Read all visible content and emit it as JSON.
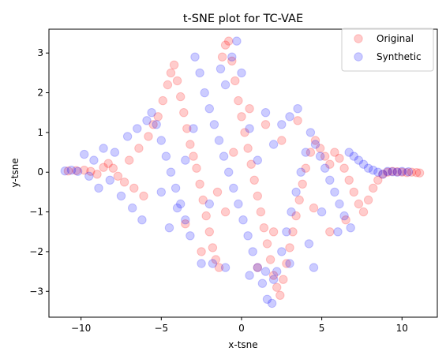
{
  "chart_data": {
    "type": "scatter",
    "title": "t-SNE plot for TC-VAE",
    "xlabel": "x-tsne",
    "ylabel": "y-tsne",
    "xlim": [
      -12.0,
      12.2
    ],
    "ylim": [
      -3.65,
      3.6
    ],
    "xticks": [
      -10,
      -5,
      0,
      5,
      10
    ],
    "yticks": [
      -3,
      -2,
      -1,
      0,
      1,
      2,
      3
    ],
    "grid": false,
    "legend_position": "top-right",
    "series": [
      {
        "name": "Original",
        "color": "#ff0000",
        "alpha": 0.2,
        "points": [
          [
            -10.8,
            0.03
          ],
          [
            -10.3,
            0.04
          ],
          [
            -9.8,
            0.05
          ],
          [
            -9.4,
            0.02
          ],
          [
            -9.0,
            -0.05
          ],
          [
            -8.6,
            0.12
          ],
          [
            -8.3,
            0.22
          ],
          [
            -8.0,
            0.1
          ],
          [
            -7.7,
            -0.1
          ],
          [
            -7.3,
            -0.25
          ],
          [
            -7.0,
            0.3
          ],
          [
            -6.7,
            -0.4
          ],
          [
            -6.4,
            0.6
          ],
          [
            -6.1,
            -0.6
          ],
          [
            -5.8,
            0.9
          ],
          [
            -5.5,
            1.2
          ],
          [
            -5.2,
            1.4
          ],
          [
            -4.9,
            1.8
          ],
          [
            -4.6,
            2.2
          ],
          [
            -4.4,
            2.5
          ],
          [
            -4.2,
            2.7
          ],
          [
            -4.0,
            2.3
          ],
          [
            -3.8,
            1.9
          ],
          [
            -3.6,
            1.5
          ],
          [
            -3.4,
            1.1
          ],
          [
            -3.2,
            0.7
          ],
          [
            -3.0,
            0.4
          ],
          [
            -2.8,
            0.1
          ],
          [
            -2.6,
            -0.3
          ],
          [
            -2.4,
            -0.7
          ],
          [
            -2.2,
            -1.1
          ],
          [
            -2.0,
            -1.5
          ],
          [
            -1.8,
            -1.9
          ],
          [
            -1.6,
            -2.2
          ],
          [
            -1.4,
            -2.4
          ],
          [
            -1.2,
            2.9
          ],
          [
            -1.0,
            3.2
          ],
          [
            -0.8,
            3.3
          ],
          [
            -0.6,
            2.8
          ],
          [
            -0.4,
            2.3
          ],
          [
            -0.2,
            1.8
          ],
          [
            0.0,
            1.4
          ],
          [
            0.2,
            1.0
          ],
          [
            0.4,
            0.6
          ],
          [
            0.6,
            0.2
          ],
          [
            0.8,
            -0.2
          ],
          [
            1.0,
            -0.6
          ],
          [
            1.2,
            -1.0
          ],
          [
            1.4,
            -1.4
          ],
          [
            1.6,
            -1.8
          ],
          [
            1.8,
            -2.2
          ],
          [
            2.0,
            -2.6
          ],
          [
            2.2,
            -2.9
          ],
          [
            2.4,
            -3.1
          ],
          [
            2.6,
            -2.7
          ],
          [
            2.8,
            -2.3
          ],
          [
            3.0,
            -1.9
          ],
          [
            3.2,
            -1.5
          ],
          [
            3.4,
            -1.1
          ],
          [
            3.6,
            -0.7
          ],
          [
            3.8,
            -0.3
          ],
          [
            4.0,
            0.1
          ],
          [
            4.3,
            0.5
          ],
          [
            4.6,
            0.8
          ],
          [
            4.9,
            0.6
          ],
          [
            5.2,
            0.4
          ],
          [
            5.5,
            0.2
          ],
          [
            5.8,
            0.5
          ],
          [
            6.1,
            0.35
          ],
          [
            6.4,
            0.1
          ],
          [
            6.7,
            -0.2
          ],
          [
            7.0,
            -0.5
          ],
          [
            7.3,
            -0.8
          ],
          [
            7.6,
            -1.0
          ],
          [
            7.9,
            -0.7
          ],
          [
            8.2,
            -0.4
          ],
          [
            8.5,
            -0.2
          ],
          [
            8.8,
            -0.05
          ],
          [
            9.1,
            0.0
          ],
          [
            9.4,
            0.02
          ],
          [
            9.7,
            0.01
          ],
          [
            10.0,
            0.0
          ],
          [
            10.3,
            -0.01
          ],
          [
            10.6,
            0.0
          ],
          [
            10.9,
            -0.01
          ],
          [
            11.1,
            -0.02
          ],
          [
            -3.5,
            -1.3
          ],
          [
            -2.5,
            -2.0
          ],
          [
            -1.5,
            -0.5
          ],
          [
            -0.5,
            0.5
          ],
          [
            0.5,
            1.6
          ],
          [
            1.5,
            1.2
          ],
          [
            2.5,
            0.8
          ],
          [
            3.5,
            1.3
          ],
          [
            4.5,
            -0.9
          ],
          [
            5.5,
            -1.5
          ],
          [
            6.5,
            -1.2
          ],
          [
            2.0,
            -1.5
          ],
          [
            1.0,
            -2.4
          ],
          [
            -1.0,
            -1.0
          ]
        ]
      },
      {
        "name": "Synthetic",
        "color": "#0000ff",
        "alpha": 0.2,
        "points": [
          [
            -11.0,
            0.03
          ],
          [
            -10.6,
            0.05
          ],
          [
            -10.2,
            0.02
          ],
          [
            -9.8,
            0.45
          ],
          [
            -9.5,
            -0.1
          ],
          [
            -9.2,
            0.3
          ],
          [
            -8.9,
            -0.4
          ],
          [
            -8.6,
            0.6
          ],
          [
            -8.2,
            -0.2
          ],
          [
            -7.9,
            0.5
          ],
          [
            -7.5,
            -0.6
          ],
          [
            -7.1,
            0.9
          ],
          [
            -6.8,
            -0.9
          ],
          [
            -6.5,
            1.1
          ],
          [
            -6.2,
            -1.2
          ],
          [
            -5.9,
            1.3
          ],
          [
            -5.6,
            1.5
          ],
          [
            -5.3,
            1.2
          ],
          [
            -5.0,
            0.8
          ],
          [
            -4.7,
            0.4
          ],
          [
            -4.4,
            0.0
          ],
          [
            -4.1,
            -0.4
          ],
          [
            -3.8,
            -0.8
          ],
          [
            -3.5,
            -1.2
          ],
          [
            -3.2,
            -1.6
          ],
          [
            -2.9,
            2.9
          ],
          [
            -2.6,
            2.5
          ],
          [
            -2.3,
            2.0
          ],
          [
            -2.0,
            1.6
          ],
          [
            -1.7,
            1.2
          ],
          [
            -1.4,
            0.8
          ],
          [
            -1.1,
            0.4
          ],
          [
            -0.8,
            0.0
          ],
          [
            -0.5,
            -0.4
          ],
          [
            -0.2,
            -0.8
          ],
          [
            0.1,
            -1.2
          ],
          [
            0.4,
            -1.6
          ],
          [
            0.7,
            -2.0
          ],
          [
            1.0,
            -2.4
          ],
          [
            1.3,
            -2.8
          ],
          [
            1.6,
            -3.2
          ],
          [
            1.9,
            -3.3
          ],
          [
            2.2,
            -2.5
          ],
          [
            2.5,
            -2.0
          ],
          [
            2.8,
            -1.5
          ],
          [
            3.1,
            -1.0
          ],
          [
            3.4,
            -0.5
          ],
          [
            3.7,
            0.0
          ],
          [
            4.0,
            0.5
          ],
          [
            4.3,
            1.0
          ],
          [
            4.6,
            0.7
          ],
          [
            4.9,
            0.4
          ],
          [
            5.2,
            0.1
          ],
          [
            5.5,
            -0.2
          ],
          [
            5.8,
            -0.5
          ],
          [
            6.1,
            -0.8
          ],
          [
            6.4,
            -1.1
          ],
          [
            6.7,
            0.5
          ],
          [
            7.0,
            0.4
          ],
          [
            7.3,
            0.3
          ],
          [
            7.6,
            0.2
          ],
          [
            7.9,
            0.1
          ],
          [
            8.2,
            0.05
          ],
          [
            8.5,
            0.0
          ],
          [
            8.8,
            -0.05
          ],
          [
            9.1,
            0.02
          ],
          [
            9.4,
            0.01
          ],
          [
            9.7,
            0.0
          ],
          [
            10.0,
            0.02
          ],
          [
            10.4,
            0.01
          ],
          [
            -0.6,
            2.9
          ],
          [
            -0.3,
            3.3
          ],
          [
            0.0,
            2.5
          ],
          [
            -1.0,
            2.2
          ],
          [
            -1.3,
            2.6
          ],
          [
            -2.5,
            -2.3
          ],
          [
            -1.8,
            -2.3
          ],
          [
            -1.0,
            -2.4
          ],
          [
            0.5,
            -2.6
          ],
          [
            1.5,
            -2.5
          ],
          [
            2.0,
            -2.7
          ],
          [
            3.5,
            1.6
          ],
          [
            3.0,
            1.4
          ],
          [
            2.5,
            1.2
          ],
          [
            1.5,
            1.5
          ],
          [
            0.5,
            1.1
          ],
          [
            -3.0,
            1.1
          ],
          [
            -4.5,
            -1.4
          ],
          [
            -5.0,
            -0.5
          ],
          [
            5.0,
            -1.0
          ],
          [
            6.0,
            -1.5
          ],
          [
            6.8,
            -1.4
          ],
          [
            4.2,
            -1.8
          ],
          [
            4.5,
            -2.4
          ],
          [
            3.0,
            -2.3
          ],
          [
            -2.0,
            -0.8
          ],
          [
            -3.5,
            0.3
          ],
          [
            -4.0,
            -0.9
          ],
          [
            1.0,
            0.3
          ],
          [
            2.0,
            0.7
          ]
        ]
      }
    ]
  }
}
